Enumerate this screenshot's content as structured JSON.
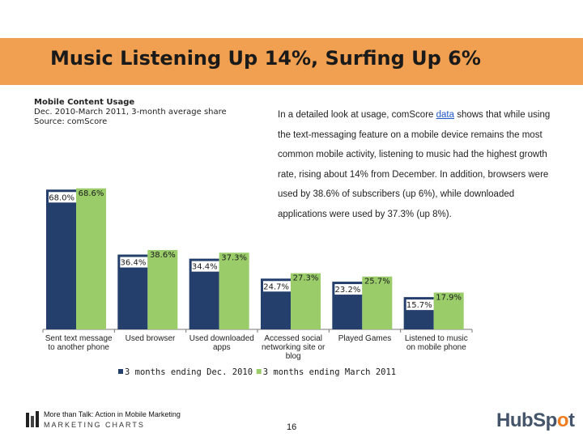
{
  "slide_title": "Music Listening Up 14%, Surfing Up 6%",
  "chart_meta": {
    "name": "Mobile Content Usage",
    "period": "Dec. 2010-March 2011, 3-month average share",
    "source": "Source: comScore"
  },
  "description": {
    "before_link": "In a detailed look at usage, comScore ",
    "link": "data",
    "after_link": " shows that while using the text-messaging feature on a mobile device remains the most common mobile activity, listening to music had the highest growth rate, rising about 14% from December. In addition, browsers were used by 38.6% of subscribers (up 6%), while downloaded applications were used by 37.3% (up 8%)."
  },
  "chart_data": {
    "type": "bar",
    "categories": [
      [
        "Sent text message",
        "to another phone"
      ],
      [
        "Used browser"
      ],
      [
        "Used downloaded",
        "apps"
      ],
      [
        "Accessed social",
        "networking site or",
        "blog"
      ],
      [
        "Played Games"
      ],
      [
        "Listened to music",
        "on mobile phone"
      ]
    ],
    "series": [
      {
        "name": "3 months ending Dec. 2010",
        "values": [
          68.0,
          36.4,
          34.4,
          24.7,
          23.2,
          15.7
        ],
        "labels": [
          "68.0%",
          "36.4%",
          "34.4%",
          "24.7%",
          "23.2%",
          "15.7%"
        ],
        "color": "#243f6b"
      },
      {
        "name": "3 months ending March 2011",
        "values": [
          68.6,
          38.6,
          37.3,
          27.3,
          25.7,
          17.9
        ],
        "labels": [
          "68.6%",
          "38.6%",
          "37.3%",
          "27.3%",
          "25.7%",
          "17.9%"
        ],
        "color": "#9acd6a"
      }
    ],
    "ylim": [
      0,
      70
    ],
    "legend_position": "bottom",
    "grid": false
  },
  "footer": {
    "line1": "More than Talk: Action in Mobile Marketing",
    "line2": "MARKETING CHARTS",
    "page": "16",
    "logo_main": "HubSp",
    "logo_dot": "o",
    "logo_end": "t"
  }
}
